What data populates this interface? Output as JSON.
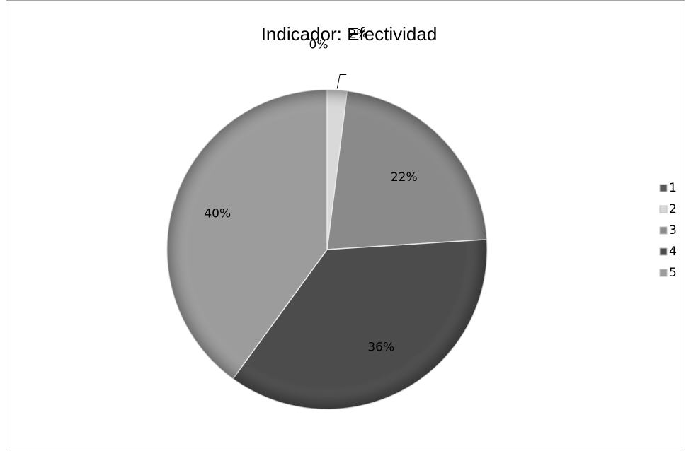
{
  "chart_data": {
    "type": "pie",
    "title": "Indicador: Efectividad",
    "categories": [
      "1",
      "2",
      "3",
      "4",
      "5"
    ],
    "values": [
      0,
      2,
      22,
      36,
      40
    ],
    "data_labels": [
      "0%",
      "2%",
      "22%",
      "36%",
      "40%"
    ],
    "legend": {
      "placement": "right",
      "entries": [
        "1",
        "2",
        "3",
        "4",
        "5"
      ]
    },
    "colors": [
      "#5a5a5a",
      "#d9d9d9",
      "#8a8a8a",
      "#4c4c4c",
      "#9c9c9c"
    ]
  }
}
